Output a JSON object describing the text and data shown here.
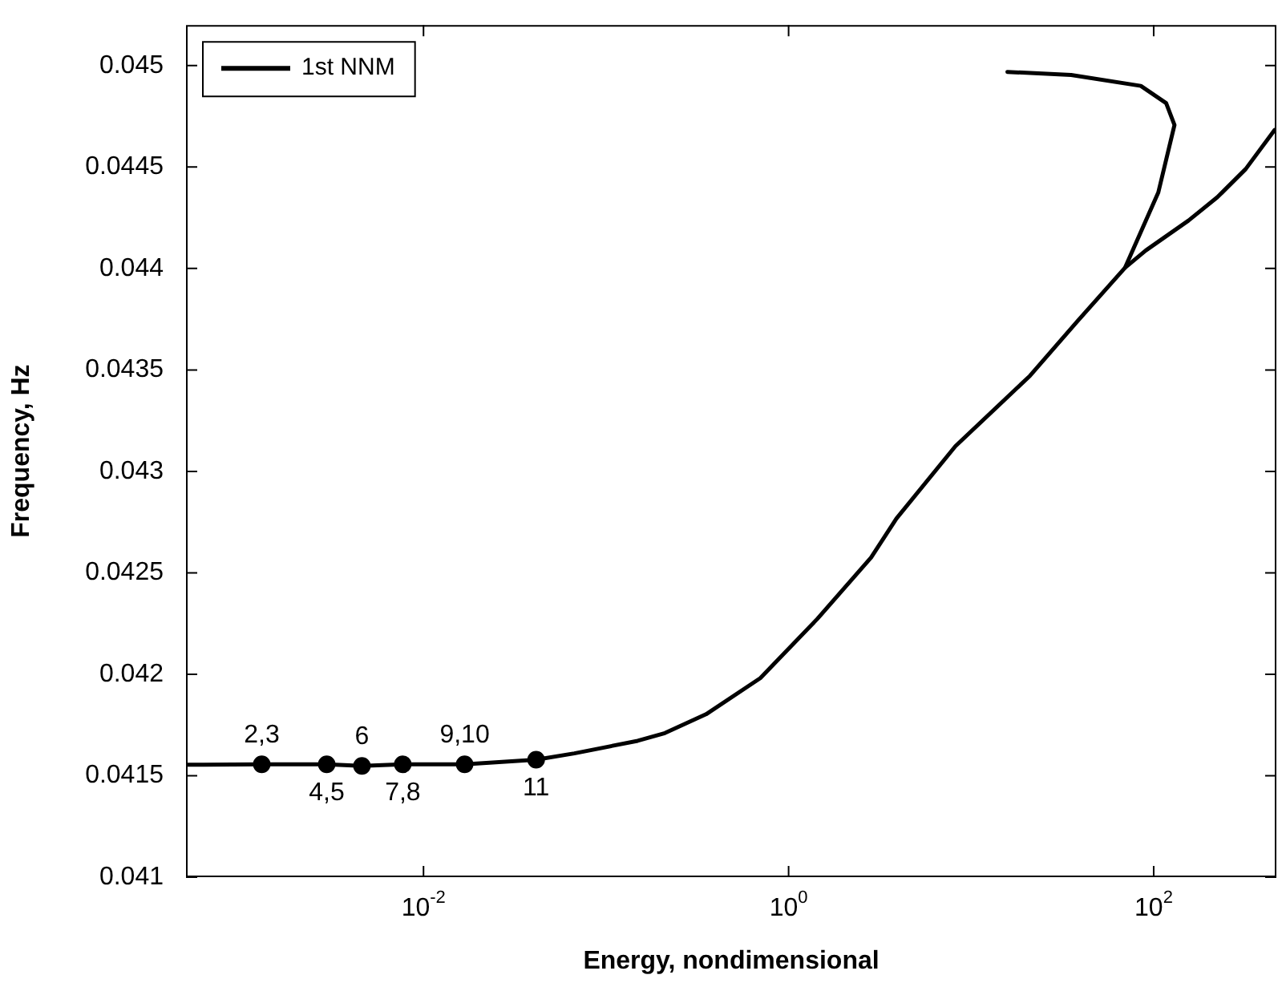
{
  "chart_data": {
    "type": "line",
    "xlabel": "Energy, nondimensional",
    "ylabel": "Frequency, Hz",
    "log": "x",
    "legend": "top left",
    "marker": "none",
    "line_style": "solid",
    "grid": false,
    "xlim": [
      0.0005,
      470
    ],
    "xticks": [
      {
        "value": 0.01,
        "label": "10$^{-2}$"
      },
      {
        "value": 1,
        "label": "10$^{0}$"
      },
      {
        "value": 100,
        "label": "10$^{2}$"
      }
    ],
    "ylim": [
      0.041,
      0.0452
    ],
    "yticks": [
      0.041,
      0.0415,
      0.042,
      0.0425,
      0.043,
      0.0435,
      0.044,
      0.0445,
      0.045
    ],
    "series": [
      {
        "name": "1st NNM",
        "color": "#000000",
        "x": [
          0.0005,
          0.0013,
          0.00295,
          0.0046,
          0.0077,
          0.0168,
          0.0414,
          0.067,
          0.149,
          0.21,
          0.353,
          0.7,
          1.44,
          2.83,
          3.9,
          8.2,
          21,
          38.3,
          69.7,
          90.5,
          155,
          223,
          319,
          460
        ],
        "values": [
          0.041554,
          0.041556,
          0.041556,
          0.041548,
          0.041556,
          0.041556,
          0.041579,
          0.04161,
          0.041672,
          0.04171,
          0.041803,
          0.041981,
          0.042274,
          0.042575,
          0.042768,
          0.043124,
          0.043471,
          0.043741,
          0.044004,
          0.044089,
          0.044236,
          0.044351,
          0.04449,
          0.044683
        ]
      },
      {
        "color": "#000000",
        "x": [
          69.7,
          106,
          130,
          117,
          85,
          35.3,
          15.8
        ],
        "values": [
          0.044004,
          0.044375,
          0.044707,
          0.044815,
          0.0449,
          0.044954,
          0.044969
        ]
      },
      {
        "type": "scatter",
        "marker": "circle",
        "color": "#000000",
        "x": [
          0.0013,
          0.00295,
          0.0046,
          0.0077,
          0.0168,
          0.0414
        ],
        "values": [
          0.041556,
          0.041556,
          0.041548,
          0.041556,
          0.041556,
          0.041579
        ]
      }
    ],
    "annotations": [
      {
        "text": "2,3",
        "x": 0.0013,
        "y": 0.041556
      },
      {
        "text": "4,5",
        "x": 0.00295,
        "y": 0.041556
      },
      {
        "text": "6",
        "x": 0.0046,
        "y": 0.041548
      },
      {
        "text": "7,8",
        "x": 0.0077,
        "y": 0.041556
      },
      {
        "text": "9,10",
        "x": 0.0168,
        "y": 0.041556
      },
      {
        "text": "11",
        "x": 0.0414,
        "y": 0.041579
      }
    ]
  }
}
